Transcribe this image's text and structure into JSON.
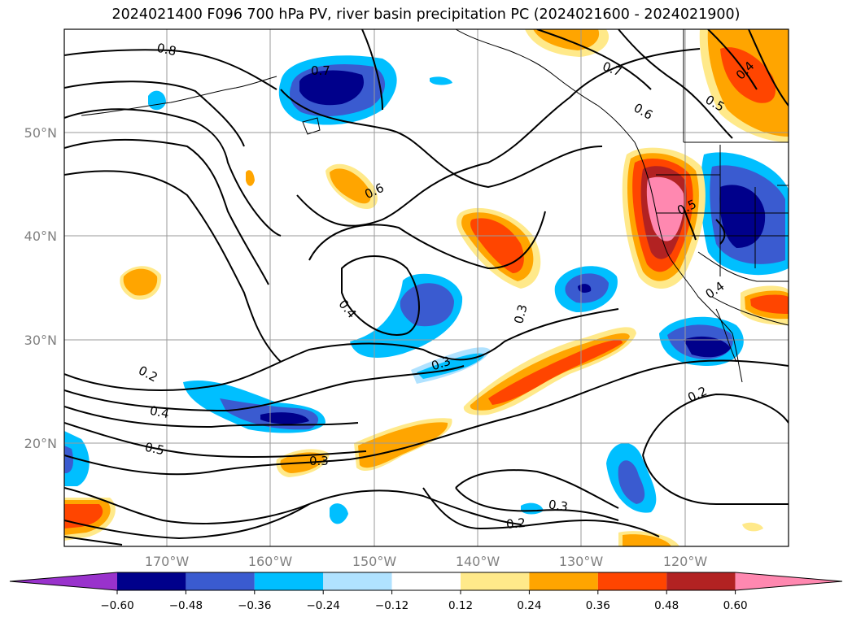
{
  "title": "2024021400 F096 700 hPa PV, river basin precipitation PC (2024021600 - 2024021900)",
  "map": {
    "lat_ticks": [
      "50°N",
      "40°N",
      "30°N",
      "20°N"
    ],
    "lon_ticks": [
      "170°W",
      "160°W",
      "150°W",
      "140°W",
      "130°W",
      "120°W"
    ],
    "contour_labels": [
      "0.8",
      "0.7",
      "0.7",
      "0.6",
      "0.6",
      "0.5",
      "0.4",
      "0.5",
      "0.4",
      "0.4",
      "0.3",
      "0.3",
      "0.2",
      "0.4",
      "0.5",
      "0.3",
      "0.2",
      "0.3",
      "0.2"
    ]
  },
  "colorbar": {
    "ticks": [
      "−0.60",
      "−0.48",
      "−0.36",
      "−0.24",
      "−0.12",
      "0.12",
      "0.24",
      "0.36",
      "0.48",
      "0.60"
    ],
    "colors": [
      "#9932cc",
      "#00008b",
      "#3a5bd0",
      "#00bfff",
      "#b0e2ff",
      "#ffffff",
      "#ffe98a",
      "#ffa500",
      "#ff4500",
      "#b22222",
      "#ff88b0"
    ]
  }
}
